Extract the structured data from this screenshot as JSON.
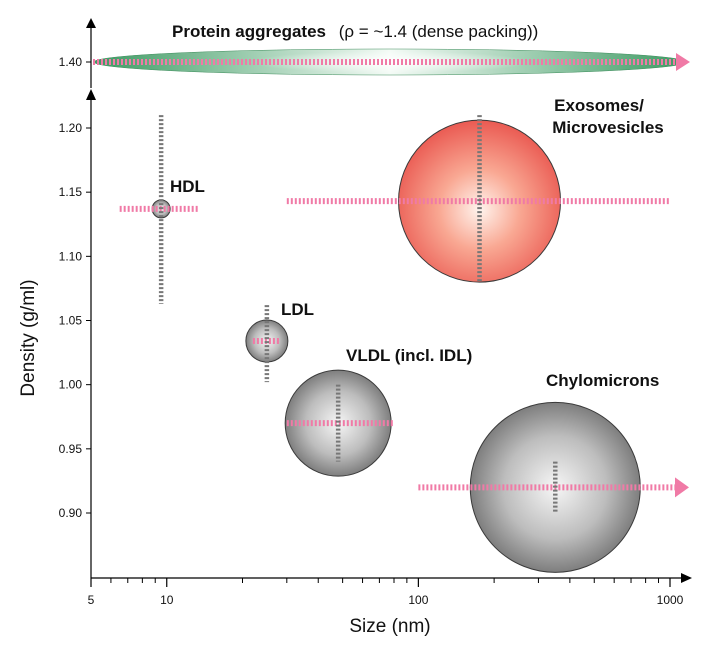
{
  "chart_data": {
    "type": "scatter",
    "title": "",
    "xlabel": "Size (nm)",
    "ylabel": "Density (g/ml)",
    "x_scale": "log",
    "xlim": [
      5,
      1000
    ],
    "ylim": [
      0.855,
      1.225
    ],
    "x_ticks": [
      5,
      10,
      100,
      1000
    ],
    "x_tick_labels": [
      "5",
      "10",
      "100",
      "1000"
    ],
    "y_ticks": [
      0.9,
      0.95,
      1.0,
      1.05,
      1.1,
      1.15,
      1.2
    ],
    "y_tick_labels": [
      "0.90",
      "0.95",
      "1.00",
      "1.05",
      "1.10",
      "1.15",
      "1.20"
    ],
    "grid": false,
    "top_band": {
      "label_bold": "Protein aggregates",
      "label_rest": "(ρ = ~1.4 (dense packing))",
      "density_label": "1.40",
      "density": 1.4,
      "x_range": [
        5,
        1000
      ],
      "arrow_right": true,
      "fill_color": "#4ca76f",
      "line_color": "#f07aa6"
    },
    "particles": [
      {
        "name": "HDL",
        "label": "HDL",
        "size_nm": 9.5,
        "density": 1.137,
        "size_range": [
          6.5,
          13.5
        ],
        "density_range": [
          1.063,
          1.21
        ],
        "color": "grey"
      },
      {
        "name": "LDL",
        "label": "LDL",
        "size_nm": 25,
        "density": 1.034,
        "size_range": [
          22,
          28
        ],
        "density_range": [
          1.002,
          1.062
        ],
        "color": "grey"
      },
      {
        "name": "VLDL",
        "label": "VLDL (incl. IDL)",
        "size_nm": 48,
        "density": 0.97,
        "size_range": [
          30,
          80
        ],
        "density_range": [
          0.94,
          1.0
        ],
        "color": "grey"
      },
      {
        "name": "Chylomicrons",
        "label": "Chylomicrons",
        "size_nm": 350,
        "density": 0.92,
        "size_range": [
          100,
          1000
        ],
        "density_range": [
          0.9,
          0.94
        ],
        "arrow_right": true,
        "color": "grey"
      },
      {
        "name": "Exosomes",
        "label": "Exosomes/ Microvesicles",
        "label_lines": [
          "Exosomes/",
          "Microvesicles"
        ],
        "size_nm": 175,
        "density": 1.143,
        "size_range": [
          30,
          1000
        ],
        "density_range": [
          1.08,
          1.21
        ],
        "color": "red"
      }
    ]
  }
}
